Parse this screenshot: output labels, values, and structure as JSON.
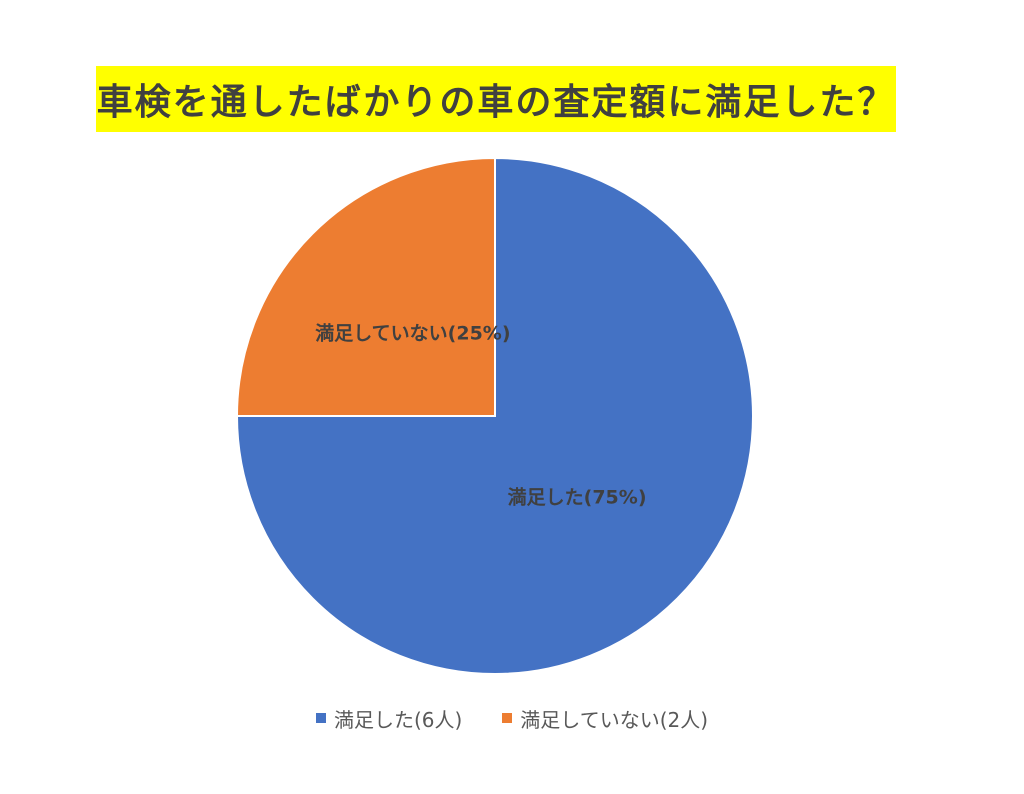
{
  "chart_data": {
    "type": "pie",
    "title": "車検を通したばかりの車の査定額に満足した？",
    "slices": [
      {
        "legend_label": "満足した(6人)",
        "data_label": "満足した(75%)",
        "value": 6,
        "percent": 75,
        "color": "#4472c4"
      },
      {
        "legend_label": "満足していない(2人)",
        "data_label": "満足していない(25%)",
        "value": 2,
        "percent": 25,
        "color": "#ed7d31"
      }
    ],
    "start_angle": "12 o'clock",
    "direction": "clockwise",
    "legend_position": "bottom",
    "title_highlight_color": "#ffff00"
  }
}
